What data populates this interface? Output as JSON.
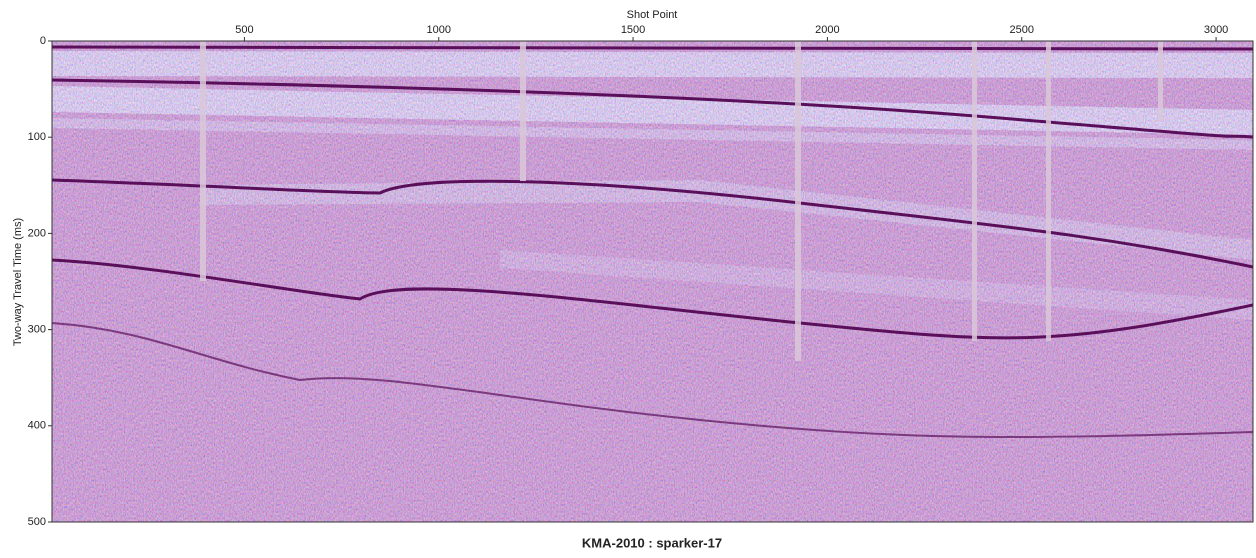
{
  "chart_data": {
    "type": "seismic",
    "title": "KMA-2010 : sparker-17",
    "xlabel": "Shot Point",
    "ylabel": "Two-way Travel Time (ms)",
    "xlim": [
      5,
      3095
    ],
    "xticks": [
      500,
      1000,
      1500,
      2000,
      2500,
      3000
    ],
    "ylim": [
      0,
      500
    ],
    "yticks": [
      0,
      100,
      200,
      300,
      400,
      500
    ]
  }
}
